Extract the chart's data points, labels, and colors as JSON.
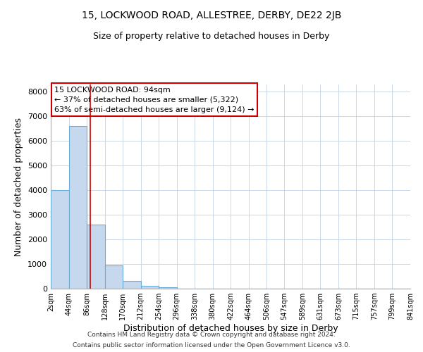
{
  "title": "15, LOCKWOOD ROAD, ALLESTREE, DERBY, DE22 2JB",
  "subtitle": "Size of property relative to detached houses in Derby",
  "xlabel": "Distribution of detached houses by size in Derby",
  "ylabel": "Number of detached properties",
  "bar_values": [
    4000,
    6600,
    2600,
    950,
    310,
    120,
    60,
    0,
    0,
    0,
    0,
    0,
    0,
    0,
    0,
    0,
    0,
    0,
    0,
    0
  ],
  "bin_edges": [
    2,
    44,
    86,
    128,
    170,
    212,
    254,
    296,
    338,
    380,
    422,
    464,
    506,
    547,
    589,
    631,
    673,
    715,
    757,
    799,
    841
  ],
  "tick_labels": [
    "2sqm",
    "44sqm",
    "86sqm",
    "128sqm",
    "170sqm",
    "212sqm",
    "254sqm",
    "296sqm",
    "338sqm",
    "380sqm",
    "422sqm",
    "464sqm",
    "506sqm",
    "547sqm",
    "589sqm",
    "631sqm",
    "673sqm",
    "715sqm",
    "757sqm",
    "799sqm",
    "841sqm"
  ],
  "bar_color": "#c5d8ee",
  "bar_edge_color": "#6aaed6",
  "grid_color": "#c8d8e8",
  "vline_x": 94,
  "vline_color": "#cc0000",
  "ylim": [
    0,
    8300
  ],
  "yticks": [
    0,
    1000,
    2000,
    3000,
    4000,
    5000,
    6000,
    7000,
    8000
  ],
  "annotation_title": "15 LOCKWOOD ROAD: 94sqm",
  "annotation_line1": "← 37% of detached houses are smaller (5,322)",
  "annotation_line2": "63% of semi-detached houses are larger (9,124) →",
  "annotation_box_color": "white",
  "annotation_box_edgecolor": "#cc0000",
  "footer_line1": "Contains HM Land Registry data © Crown copyright and database right 2024.",
  "footer_line2": "Contains public sector information licensed under the Open Government Licence v3.0.",
  "background_color": "white",
  "fig_width": 6.0,
  "fig_height": 5.0,
  "dpi": 100
}
